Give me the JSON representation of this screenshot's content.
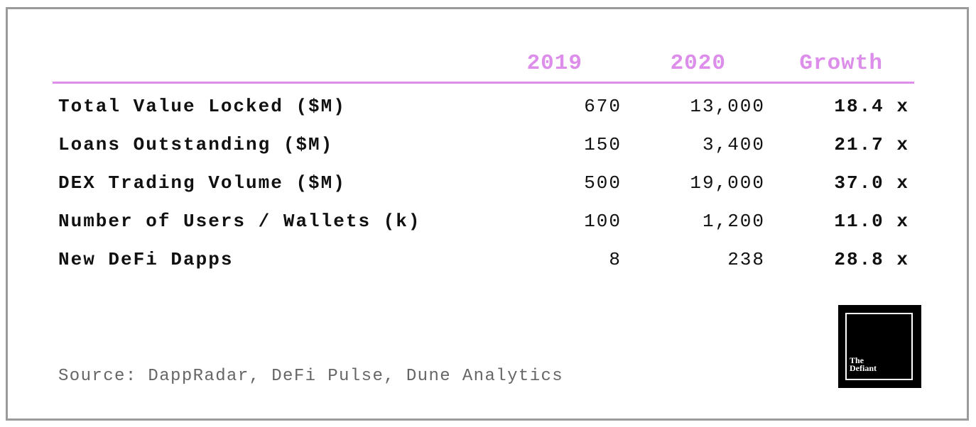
{
  "table": {
    "header": [
      "2019",
      "2020",
      "Growth"
    ],
    "rows": [
      [
        "Total Value Locked ($M)",
        "670",
        "13,000",
        "18.4 x"
      ],
      [
        "Loans Outstanding ($M)",
        "150",
        "3,400",
        "21.7 x"
      ],
      [
        "DEX Trading Volume ($M)",
        "500",
        "19,000",
        "37.0 x"
      ],
      [
        "Number of Users / Wallets (k)",
        "100",
        "1,200",
        "11.0 x"
      ],
      [
        "New DeFi Dapps",
        "8",
        "238",
        "28.8 x"
      ]
    ]
  },
  "source": "Source: DappRadar, DeFi Pulse, Dune Analytics",
  "logo": {
    "line1": "The",
    "line2": "Defiant"
  }
}
